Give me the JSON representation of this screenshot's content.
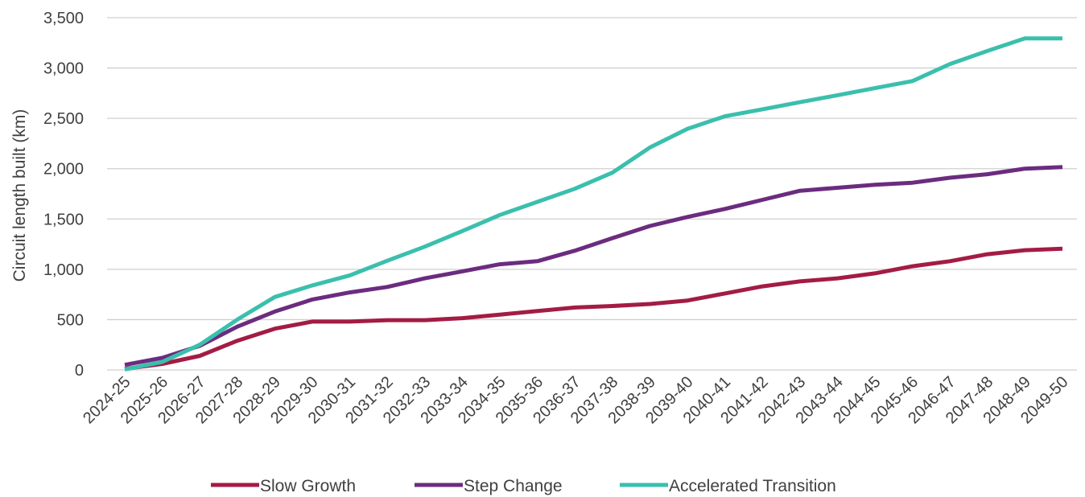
{
  "chart_data": {
    "type": "line",
    "title": "",
    "xlabel": "",
    "ylabel": "Circuit length built (km)",
    "ylim": [
      0,
      3500
    ],
    "ytick_step": 500,
    "yticks": [
      "0",
      "500",
      "1,000",
      "1,500",
      "2,000",
      "2,500",
      "3,000",
      "3,500"
    ],
    "grid": "horizontal",
    "legend_position": "bottom",
    "categories": [
      "2024-25",
      "2025-26",
      "2026-27",
      "2027-28",
      "2028-29",
      "2029-30",
      "2030-31",
      "2031-32",
      "2032-33",
      "2033-34",
      "2034-35",
      "2035-36",
      "2036-37",
      "2037-38",
      "2038-39",
      "2039-40",
      "2040-41",
      "2041-42",
      "2042-43",
      "2043-44",
      "2044-45",
      "2045-46",
      "2046-47",
      "2047-48",
      "2048-49",
      "2049-50"
    ],
    "series": [
      {
        "name": "Slow Growth",
        "color": "#a31c44",
        "values": [
          10,
          60,
          140,
          290,
          410,
          480,
          480,
          495,
          495,
          515,
          550,
          585,
          620,
          635,
          655,
          690,
          760,
          830,
          880,
          910,
          960,
          1030,
          1080,
          1150,
          1190,
          1205
        ]
      },
      {
        "name": "Step Change",
        "color": "#6b2c7f",
        "values": [
          50,
          120,
          240,
          430,
          580,
          700,
          770,
          825,
          910,
          980,
          1050,
          1080,
          1185,
          1310,
          1430,
          1520,
          1600,
          1690,
          1780,
          1810,
          1840,
          1860,
          1910,
          1945,
          2000,
          2015
        ]
      },
      {
        "name": "Accelerated Transition",
        "color": "#3bbfad",
        "values": [
          5,
          80,
          250,
          500,
          725,
          840,
          940,
          1085,
          1225,
          1380,
          1540,
          1670,
          1800,
          1960,
          2210,
          2395,
          2520,
          2590,
          2660,
          2730,
          2800,
          2870,
          3040,
          3170,
          3295,
          3295
        ]
      }
    ]
  }
}
